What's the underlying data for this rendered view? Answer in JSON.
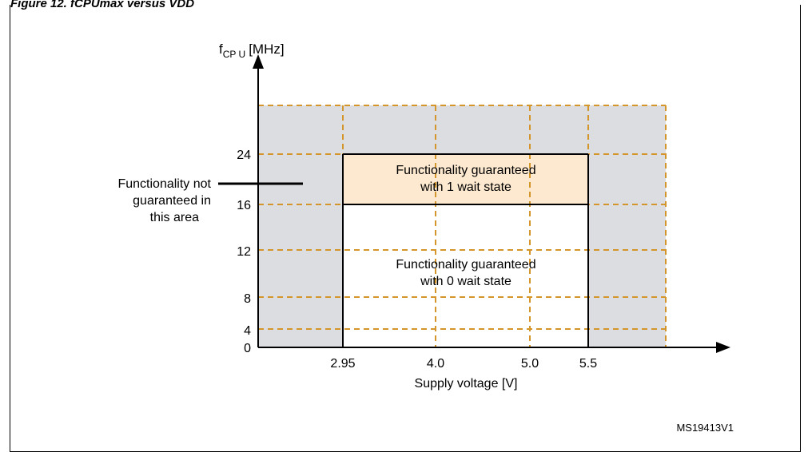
{
  "caption": "Figure 12. fCPUmax versus VDD",
  "y_axis": {
    "label_main": "f",
    "label_sub": "CP U",
    "label_unit": "[MHz]",
    "ticks": [
      "0",
      "4",
      "8",
      "12",
      "16",
      "24"
    ]
  },
  "x_axis": {
    "label": "Supply voltage [V]",
    "ticks": [
      "2.95",
      "4.0",
      "5.0",
      "5.5"
    ]
  },
  "regions": {
    "one_wait_line1": "Functionality guaranteed",
    "one_wait_line2": "with 1 wait state",
    "zero_wait_line1": "Functionality guaranteed",
    "zero_wait_line2": "with 0 wait state"
  },
  "callout": {
    "line1": "Functionality not",
    "line2": "guaranteed in",
    "line3": "this area"
  },
  "figure_ref": "MS19413V1",
  "colors": {
    "grid_dash": "#d4962b",
    "not_guaranteed_fill": "#dcdde0",
    "one_wait_fill": "#fde9cf",
    "zero_wait_fill": "#ffffff",
    "axis": "#000000"
  }
}
